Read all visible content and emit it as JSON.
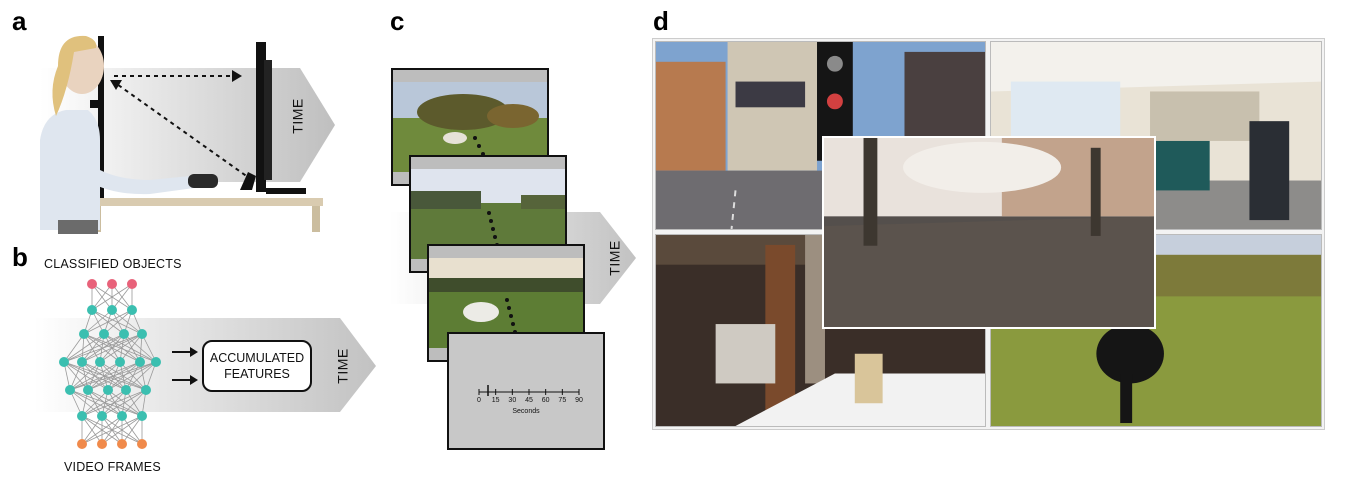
{
  "panels": {
    "a": {
      "letter": "a",
      "arrow_label": "TIME"
    },
    "b": {
      "letter": "b",
      "top_label": "CLASSIFIED OBJECTS",
      "bottom_label": "VIDEO FRAMES",
      "box_label_line1": "ACCUMULATED",
      "box_label_line2": "FEATURES",
      "arrow_label": "TIME",
      "colors": {
        "output_node": "#e8627a",
        "hidden_node": "#3bbfb0",
        "input_node": "#f08a4b"
      }
    },
    "c": {
      "letter": "c",
      "arrow_label": "TIME",
      "timeline": {
        "ticks": [
          "0",
          "15",
          "30",
          "45",
          "60",
          "75",
          "90"
        ],
        "axis_label": "Seconds"
      }
    },
    "d": {
      "letter": "d"
    }
  }
}
